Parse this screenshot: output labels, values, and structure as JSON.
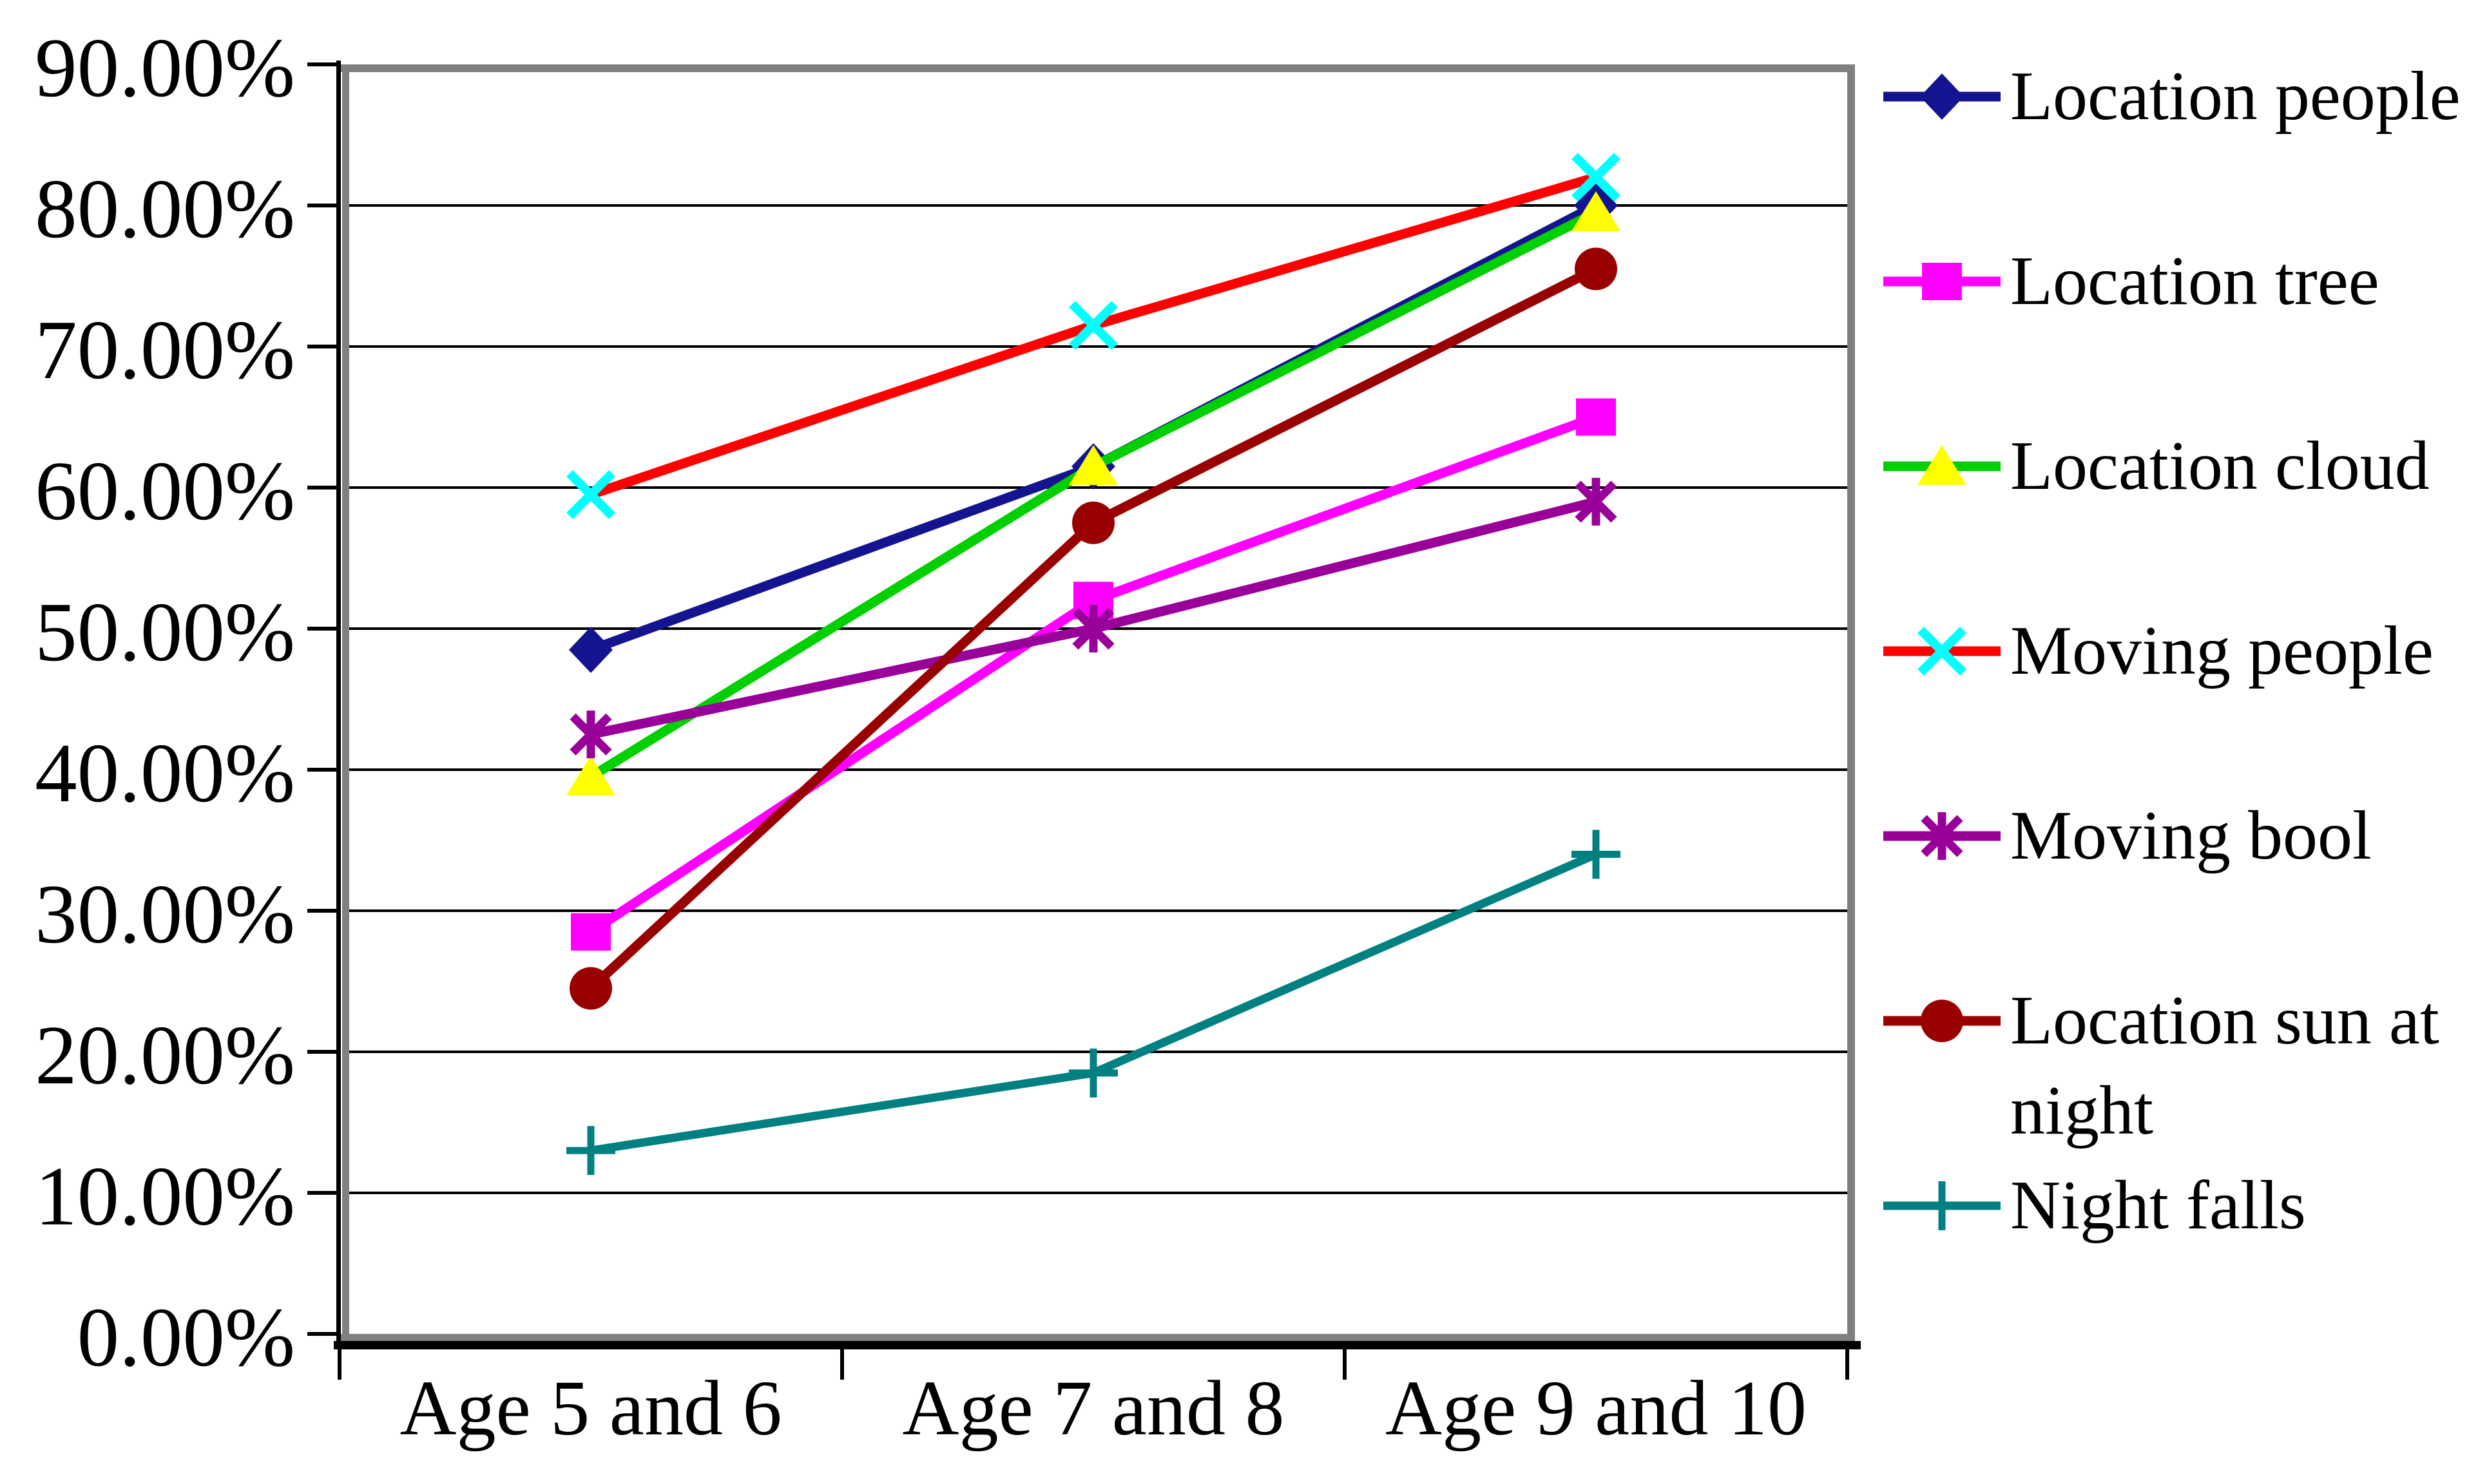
{
  "chart_data": {
    "type": "line",
    "title": "",
    "categories": [
      "Age 5 and 6",
      "Age 7 and 8",
      "Age 9 and 10"
    ],
    "series": [
      {
        "name": "Location people",
        "line_color": "#141490",
        "marker": "diamond",
        "marker_color": "#141490",
        "values": [
          48.5,
          61.5,
          80.0
        ]
      },
      {
        "name": "Location tree",
        "line_color": "#FF00FF",
        "marker": "square",
        "marker_color": "#FF00FF",
        "values": [
          28.5,
          52.0,
          65.0
        ]
      },
      {
        "name": "Location cloud",
        "line_color": "#00D000",
        "marker": "triangle",
        "marker_color": "#FFFF00",
        "values": [
          39.5,
          61.5,
          79.5
        ]
      },
      {
        "name": "Moving people",
        "line_color": "#FF0000",
        "marker": "x",
        "marker_color": "#00FFFF",
        "values": [
          59.5,
          71.5,
          82.0
        ]
      },
      {
        "name": "Moving bool",
        "line_color": "#990099",
        "marker": "asterisk",
        "marker_color": "#990099",
        "values": [
          42.5,
          50.0,
          59.0
        ]
      },
      {
        "name": "Location sun at night",
        "line_color": "#990000",
        "marker": "circle",
        "marker_color": "#990000",
        "values": [
          24.5,
          57.5,
          75.5
        ]
      },
      {
        "name": "Night falls",
        "line_color": "#008080",
        "marker": "plus",
        "marker_color": "#008080",
        "values": [
          13.0,
          18.5,
          34.0
        ]
      }
    ],
    "y_axis": {
      "min": 0,
      "max": 90,
      "step": 10,
      "tick_labels": [
        "0.00%",
        "10.00%",
        "20.00%",
        "30.00%",
        "40.00%",
        "50.00%",
        "60.00%",
        "70.00%",
        "80.00%",
        "90.00%"
      ]
    },
    "x_axis": {
      "tick_labels": [
        "Age 5 and 6",
        "Age 7 and 8",
        "Age 9 and 10"
      ]
    },
    "grid": true,
    "legend_position": "right"
  },
  "colors": {
    "background": "#FFFFFF",
    "gridline": "#000000",
    "axis": "#000000",
    "plot_border_shadow": "#808080",
    "text": "#000000"
  }
}
